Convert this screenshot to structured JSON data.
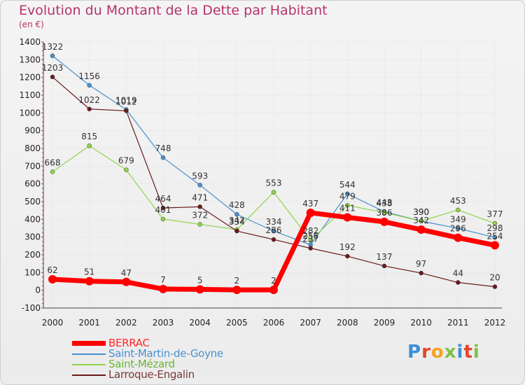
{
  "title": "Evolution du Montant de la Dette par Habitant",
  "subtitle": "(en €)",
  "logo": {
    "text": "Proxiti",
    "colors": [
      "#3a8fd8",
      "#e5442b",
      "#f6a21d",
      "#7cc243",
      "#3a8fd8",
      "#e5442b",
      "#7cc243"
    ]
  },
  "chart_data": {
    "type": "line",
    "categories": [
      "2000",
      "2001",
      "2002",
      "2003",
      "2004",
      "2005",
      "2006",
      "2007",
      "2008",
      "2009",
      "2010",
      "2011",
      "2012"
    ],
    "ylim": [
      -100,
      1400
    ],
    "yticks": [
      -100,
      0,
      100,
      200,
      300,
      400,
      500,
      600,
      700,
      800,
      900,
      1000,
      1100,
      1200,
      1300,
      1400
    ],
    "series": [
      {
        "name": "BERRAC",
        "color": "#ff0000",
        "values": [
          62,
          51,
          47,
          7,
          5,
          2,
          2,
          437,
          411,
          386,
          342,
          296,
          254
        ]
      },
      {
        "name": "Saint-Martin-de-Goyne",
        "color": "#4a90d0",
        "values": [
          1322,
          1156,
          1019,
          748,
          593,
          428,
          334,
          256,
          544,
          443,
          390,
          349,
          298
        ]
      },
      {
        "name": "Saint-Mézard",
        "color": "#8fd54a",
        "values": [
          668,
          815,
          679,
          401,
          372,
          342,
          553,
          282,
          479,
          438,
          390,
          453,
          377
        ]
      },
      {
        "name": "Larroque-Engalin",
        "color": "#6b1a1a",
        "values": [
          1203,
          1022,
          1012,
          464,
          471,
          334,
          286,
          237,
          192,
          137,
          97,
          44,
          20
        ]
      }
    ]
  }
}
